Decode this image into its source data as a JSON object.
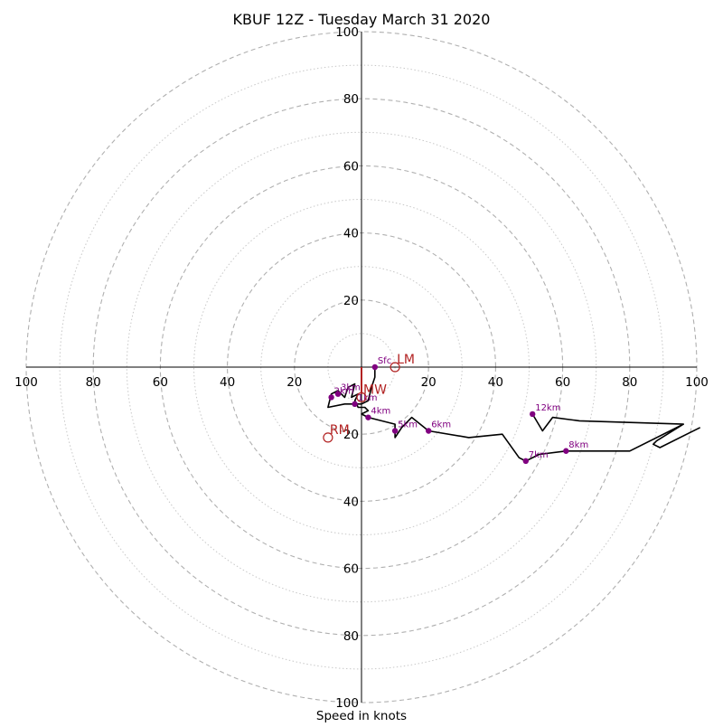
{
  "chart_data": {
    "type": "scatter",
    "title": "KBUF 12Z - Tuesday March 31 2020",
    "xlabel": "Speed in knots",
    "ylabel": "",
    "xlim": [
      -100,
      100
    ],
    "ylim": [
      -100,
      100
    ],
    "grid": true,
    "ring_labels_major": [
      20,
      40,
      60,
      80,
      100
    ],
    "ring_minor": [
      10,
      30,
      50,
      70,
      90
    ],
    "axis_ticks": {
      "x_negative": [
        100,
        80,
        60,
        40,
        20
      ],
      "x_positive": [
        20,
        40,
        60,
        80,
        100
      ],
      "y_positive": [
        20,
        40,
        60,
        80,
        100
      ],
      "y_negative": [
        20,
        40,
        60,
        80,
        100
      ]
    },
    "hodograph": {
      "color": "#000000",
      "points": [
        [
          4,
          0
        ],
        [
          4,
          3
        ],
        [
          3,
          6
        ],
        [
          2,
          10
        ],
        [
          0,
          11
        ],
        [
          -3,
          11
        ],
        [
          -5,
          11
        ],
        [
          -10,
          12
        ],
        [
          -9,
          8
        ],
        [
          -7,
          7
        ],
        [
          -5,
          9
        ],
        [
          -4,
          6
        ],
        [
          -2,
          5
        ],
        [
          -3,
          9
        ],
        [
          -1,
          8
        ],
        [
          -2,
          10
        ],
        [
          -1,
          12
        ],
        [
          1,
          12
        ],
        [
          2,
          13
        ],
        [
          0,
          14
        ],
        [
          2,
          15
        ],
        [
          10,
          17
        ],
        [
          10,
          21
        ],
        [
          12,
          18
        ],
        [
          15,
          15
        ],
        [
          20,
          19
        ],
        [
          32,
          21
        ],
        [
          42,
          20
        ],
        [
          47,
          27
        ],
        [
          49,
          28
        ],
        [
          53,
          26
        ],
        [
          61,
          25
        ],
        [
          80,
          25
        ],
        [
          96,
          17
        ],
        [
          65,
          16
        ],
        [
          57,
          15
        ],
        [
          54,
          19
        ],
        [
          51,
          14
        ],
        [
          54,
          19
        ],
        [
          57,
          15
        ],
        [
          65,
          16
        ],
        [
          96,
          17
        ],
        [
          88,
          22
        ],
        [
          87,
          23
        ],
        [
          89,
          24
        ],
        [
          101,
          18
        ]
      ]
    },
    "height_markers": [
      {
        "label": "Sfc",
        "x": 4,
        "y": 0
      },
      {
        "label": "1km",
        "x": -2,
        "y": 11
      },
      {
        "label": "2km",
        "x": -9,
        "y": 9
      },
      {
        "label": "3km",
        "x": -7,
        "y": 8
      },
      {
        "label": "4km",
        "x": 2,
        "y": 15
      },
      {
        "label": "5km",
        "x": 10,
        "y": 19
      },
      {
        "label": "6km",
        "x": 20,
        "y": 19
      },
      {
        "label": "7km",
        "x": 49,
        "y": 28
      },
      {
        "label": "8km",
        "x": 61,
        "y": 25
      },
      {
        "label": "12km",
        "x": 51,
        "y": 14
      }
    ],
    "storm_motion": [
      {
        "label": "LM",
        "x": 10,
        "y": 0
      },
      {
        "label": "MW",
        "x": 0,
        "y": 9
      },
      {
        "label": "RM",
        "x": -10,
        "y": 21
      }
    ],
    "shear_vector": {
      "x": 0,
      "y1": 0,
      "y2": 8
    },
    "colors": {
      "marker": "#800080",
      "storm": "#b22222",
      "grid": "#b0b0b0",
      "axis": "#000000"
    }
  }
}
